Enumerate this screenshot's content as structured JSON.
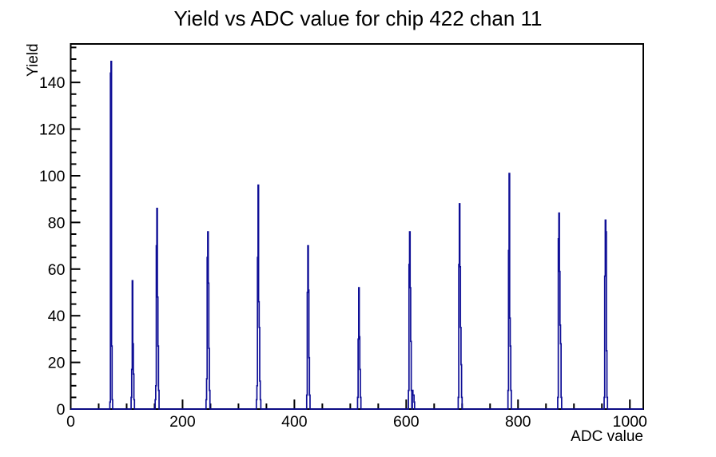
{
  "chart_data": {
    "type": "bar",
    "title": "Yield vs ADC value for chip 422 chan 11",
    "xlabel": "ADC value",
    "ylabel": "Yield",
    "xlim": [
      0,
      1024
    ],
    "ylim": [
      0,
      156.5
    ],
    "x_major_ticks": [
      0,
      200,
      400,
      600,
      800,
      1000
    ],
    "x_minor_step": 50,
    "y_major_ticks": [
      0,
      20,
      40,
      60,
      80,
      100,
      120,
      140
    ],
    "y_minor_step": 5,
    "grid": false,
    "legend": "none",
    "line_color": "#0e0e96",
    "background_color": "#ffffff",
    "bins": [
      [
        70,
        3
      ],
      [
        71,
        144
      ],
      [
        72,
        149
      ],
      [
        73,
        27
      ],
      [
        74,
        4
      ],
      [
        108,
        5
      ],
      [
        109,
        17
      ],
      [
        110,
        55
      ],
      [
        111,
        28
      ],
      [
        112,
        15
      ],
      [
        113,
        4
      ],
      [
        151,
        4
      ],
      [
        152,
        10
      ],
      [
        153,
        70
      ],
      [
        154,
        86
      ],
      [
        155,
        48
      ],
      [
        156,
        27
      ],
      [
        157,
        8
      ],
      [
        242,
        4
      ],
      [
        243,
        13
      ],
      [
        244,
        65
      ],
      [
        245,
        76
      ],
      [
        246,
        54
      ],
      [
        247,
        26
      ],
      [
        248,
        8
      ],
      [
        332,
        4
      ],
      [
        333,
        10
      ],
      [
        334,
        65
      ],
      [
        335,
        96
      ],
      [
        336,
        46
      ],
      [
        337,
        35
      ],
      [
        338,
        12
      ],
      [
        339,
        4
      ],
      [
        422,
        6
      ],
      [
        423,
        50
      ],
      [
        424,
        70
      ],
      [
        425,
        51
      ],
      [
        426,
        22
      ],
      [
        427,
        6
      ],
      [
        513,
        5
      ],
      [
        514,
        30
      ],
      [
        515,
        52
      ],
      [
        516,
        31
      ],
      [
        517,
        17
      ],
      [
        518,
        5
      ],
      [
        604,
        8
      ],
      [
        605,
        62
      ],
      [
        606,
        76
      ],
      [
        607,
        52
      ],
      [
        608,
        29
      ],
      [
        609,
        8
      ],
      [
        611,
        8
      ],
      [
        612,
        6
      ],
      [
        613,
        6
      ],
      [
        614,
        3
      ],
      [
        693,
        5
      ],
      [
        694,
        62
      ],
      [
        695,
        88
      ],
      [
        696,
        61
      ],
      [
        697,
        35
      ],
      [
        698,
        19
      ],
      [
        699,
        5
      ],
      [
        782,
        8
      ],
      [
        783,
        68
      ],
      [
        784,
        101
      ],
      [
        785,
        39
      ],
      [
        786,
        27
      ],
      [
        787,
        8
      ],
      [
        871,
        5
      ],
      [
        872,
        73
      ],
      [
        873,
        84
      ],
      [
        874,
        59
      ],
      [
        875,
        36
      ],
      [
        876,
        28
      ],
      [
        877,
        5
      ],
      [
        954,
        5
      ],
      [
        955,
        57
      ],
      [
        956,
        81
      ],
      [
        957,
        76
      ],
      [
        958,
        25
      ],
      [
        959,
        5
      ]
    ]
  }
}
